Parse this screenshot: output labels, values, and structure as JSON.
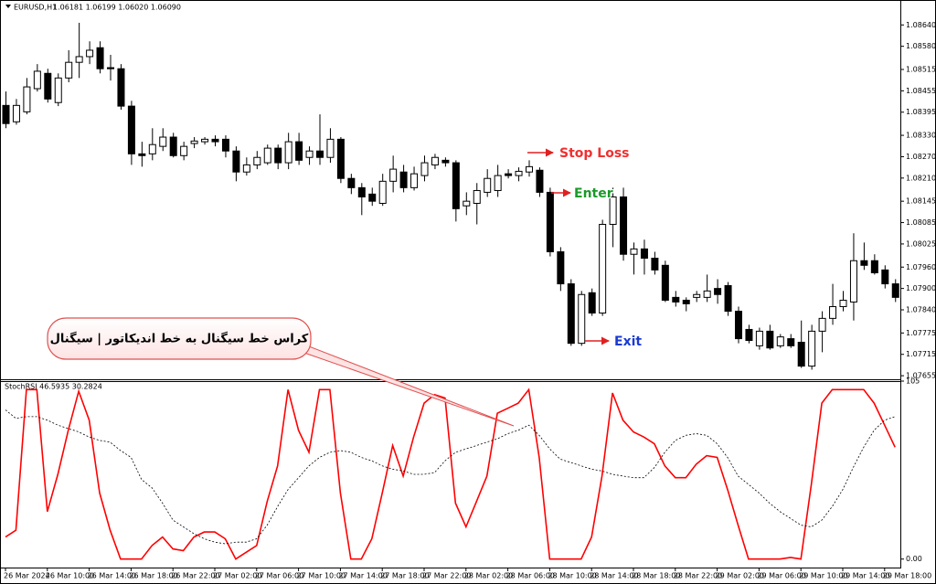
{
  "chart_data": [
    {
      "type": "candlestick",
      "title": "EURUSD,H1",
      "info": "1.06181 1.06199 1.06020 1.06090",
      "annotations": {
        "stop_loss": "Stop Loss",
        "enter": "Enter",
        "exit": "Exit",
        "callout": "کراس خط سیگنال به خط اندیکاتور | سیگنال"
      },
      "up_color": "#ffffff",
      "down_color": "#000000",
      "ylim": [
        1.07645,
        1.0871
      ],
      "yticks": [
        {
          "value": 1.0864,
          "label": "1.08640"
        },
        {
          "value": 1.0858,
          "label": "1.08580"
        },
        {
          "value": 1.08515,
          "label": "1.08515"
        },
        {
          "value": 1.08455,
          "label": "1.08455"
        },
        {
          "value": 1.08395,
          "label": "1.08395"
        },
        {
          "value": 1.0833,
          "label": "1.08330"
        },
        {
          "value": 1.0827,
          "label": "1.08270"
        },
        {
          "value": 1.0821,
          "label": "1.08210"
        },
        {
          "value": 1.08145,
          "label": "1.08145"
        },
        {
          "value": 1.08085,
          "label": "1.08085"
        },
        {
          "value": 1.08025,
          "label": "1.08025"
        },
        {
          "value": 1.0796,
          "label": "1.07960"
        },
        {
          "value": 1.079,
          "label": "1.07900"
        },
        {
          "value": 1.0784,
          "label": "1.07840"
        },
        {
          "value": 1.07775,
          "label": "1.07775"
        },
        {
          "value": 1.07715,
          "label": "1.07715"
        },
        {
          "value": 1.07655,
          "label": "1.07655"
        }
      ],
      "ohlc": [
        [
          1.08414,
          1.08453,
          1.0835,
          1.08363
        ],
        [
          1.08368,
          1.08432,
          1.0836,
          1.08414
        ],
        [
          1.08396,
          1.08491,
          1.08389,
          1.08466
        ],
        [
          1.08461,
          1.0853,
          1.08453,
          1.0851
        ],
        [
          1.08504,
          1.08517,
          1.08422,
          1.08432
        ],
        [
          1.08422,
          1.08504,
          1.08412,
          1.08491
        ],
        [
          1.08491,
          1.08569,
          1.08479,
          1.08535
        ],
        [
          1.08535,
          1.08646,
          1.08491,
          1.08551
        ],
        [
          1.08551,
          1.08594,
          1.0853,
          1.08569
        ],
        [
          1.08576,
          1.08594,
          1.08504,
          1.08517
        ],
        [
          1.0852,
          1.08556,
          1.08484,
          1.08517
        ],
        [
          1.08517,
          1.0853,
          1.08402,
          1.08412
        ],
        [
          1.08412,
          1.08427,
          1.08247,
          1.08278
        ],
        [
          1.08278,
          1.08312,
          1.08242,
          1.08273
        ],
        [
          1.08278,
          1.0835,
          1.0826,
          1.08304
        ],
        [
          1.08299,
          1.0835,
          1.08286,
          1.08325
        ],
        [
          1.08325,
          1.08337,
          1.08268,
          1.08273
        ],
        [
          1.08273,
          1.08312,
          1.0826,
          1.08299
        ],
        [
          1.08307,
          1.08325,
          1.08294,
          1.08314
        ],
        [
          1.08312,
          1.08325,
          1.08304,
          1.08319
        ],
        [
          1.08319,
          1.0833,
          1.08299,
          1.08312
        ],
        [
          1.08319,
          1.0833,
          1.08268,
          1.08286
        ],
        [
          1.08286,
          1.08299,
          1.08201,
          1.08227
        ],
        [
          1.08227,
          1.08268,
          1.08217,
          1.08247
        ],
        [
          1.08247,
          1.08286,
          1.08235,
          1.08268
        ],
        [
          1.08253,
          1.08304,
          1.08247,
          1.08294
        ],
        [
          1.08294,
          1.08304,
          1.08235,
          1.08253
        ],
        [
          1.08253,
          1.08337,
          1.08235,
          1.08312
        ],
        [
          1.08312,
          1.08337,
          1.08247,
          1.0826
        ],
        [
          1.08268,
          1.08299,
          1.08247,
          1.08286
        ],
        [
          1.08286,
          1.08389,
          1.08247,
          1.08268
        ],
        [
          1.08268,
          1.0835,
          1.08253,
          1.08319
        ],
        [
          1.08319,
          1.08325,
          1.08196,
          1.08209
        ],
        [
          1.08209,
          1.08222,
          1.08165,
          1.08183
        ],
        [
          1.08183,
          1.08196,
          1.08106,
          1.08157
        ],
        [
          1.08165,
          1.08183,
          1.08132,
          1.08145
        ],
        [
          1.08139,
          1.08222,
          1.08132,
          1.08201
        ],
        [
          1.08201,
          1.08273,
          1.0817,
          1.08235
        ],
        [
          1.08227,
          1.08247,
          1.0817,
          1.08183
        ],
        [
          1.08183,
          1.08242,
          1.08175,
          1.08222
        ],
        [
          1.08217,
          1.08273,
          1.08201,
          1.08253
        ],
        [
          1.08247,
          1.08278,
          1.08235,
          1.08268
        ],
        [
          1.0826,
          1.08268,
          1.08242,
          1.08253
        ],
        [
          1.08253,
          1.0826,
          1.08088,
          1.08124
        ],
        [
          1.08132,
          1.0817,
          1.08106,
          1.08145
        ],
        [
          1.08139,
          1.08196,
          1.0808,
          1.08175
        ],
        [
          1.0817,
          1.08235,
          1.08157,
          1.08209
        ],
        [
          1.08175,
          1.08247,
          1.08157,
          1.08217
        ],
        [
          1.08222,
          1.08235,
          1.08209,
          1.08217
        ],
        [
          1.08217,
          1.0824,
          1.08201,
          1.08229
        ],
        [
          1.08227,
          1.0826,
          1.08214,
          1.08242
        ],
        [
          1.08232,
          1.0824,
          1.08157,
          1.0817
        ],
        [
          1.0817,
          1.08183,
          1.0799,
          1.08003
        ],
        [
          1.08003,
          1.08016,
          1.07893,
          1.07913
        ],
        [
          1.07913,
          1.07926,
          1.07739,
          1.07746
        ],
        [
          1.07746,
          1.07893,
          1.07739,
          1.07883
        ],
        [
          1.07888,
          1.079,
          1.07823,
          1.07831
        ],
        [
          1.07831,
          1.08093,
          1.07823,
          1.0808
        ],
        [
          1.0808,
          1.08183,
          1.08016,
          1.08157
        ],
        [
          1.08157,
          1.08183,
          1.07978,
          1.07996
        ],
        [
          1.07996,
          1.08029,
          1.07939,
          1.08011
        ],
        [
          1.08011,
          1.08037,
          1.07939,
          1.07985
        ],
        [
          1.07985,
          1.08003,
          1.07939,
          1.07952
        ],
        [
          1.07965,
          1.07978,
          1.07862,
          1.07867
        ],
        [
          1.07875,
          1.07893,
          1.07849,
          1.07862
        ],
        [
          1.07867,
          1.07875,
          1.07836,
          1.07857
        ],
        [
          1.07875,
          1.07893,
          1.07862,
          1.07883
        ],
        [
          1.07875,
          1.07939,
          1.07862,
          1.07893
        ],
        [
          1.079,
          1.07926,
          1.07857,
          1.07883
        ],
        [
          1.07908,
          1.07918,
          1.07823,
          1.07836
        ],
        [
          1.07836,
          1.07849,
          1.07746,
          1.07759
        ],
        [
          1.07785,
          1.07798,
          1.07746,
          1.07754
        ],
        [
          1.07739,
          1.0779,
          1.07728,
          1.0778
        ],
        [
          1.0778,
          1.07798,
          1.07728,
          1.07733
        ],
        [
          1.07739,
          1.07772,
          1.07733,
          1.07764
        ],
        [
          1.07759,
          1.07772,
          1.07733,
          1.07739
        ],
        [
          1.07749,
          1.0781,
          1.07677,
          1.07682
        ],
        [
          1.07682,
          1.07798,
          1.07672,
          1.0778
        ],
        [
          1.0778,
          1.07836,
          1.07721,
          1.07816
        ],
        [
          1.07816,
          1.07913,
          1.07798,
          1.07849
        ],
        [
          1.07849,
          1.07893,
          1.07836,
          1.07867
        ],
        [
          1.07862,
          1.08055,
          1.0781,
          1.07978
        ],
        [
          1.07978,
          1.08029,
          1.07952,
          1.07965
        ],
        [
          1.07978,
          1.07996,
          1.07939,
          1.07944
        ],
        [
          1.07952,
          1.07965,
          1.079,
          1.07913
        ],
        [
          1.07913,
          1.07926,
          1.07862,
          1.07875
        ]
      ]
    },
    {
      "type": "line",
      "title": "StochRSI 46.5935 30.2824",
      "ylim": [
        -5,
        105
      ],
      "yticks": [
        105,
        {
          "value": 0,
          "label": "0.00"
        }
      ],
      "categories": [
        "26 Mar 2024",
        null,
        null,
        null,
        "26 Mar 10:00",
        null,
        null,
        null,
        "26 Mar 14:00",
        null,
        null,
        null,
        "26 Mar 18:00",
        null,
        null,
        null,
        "26 Mar 22:00",
        null,
        null,
        null,
        "27 Mar 02:00",
        null,
        null,
        null,
        "27 Mar 06:00",
        null,
        null,
        null,
        "27 Mar 10:00",
        null,
        null,
        null,
        "27 Mar 14:00",
        null,
        null,
        null,
        "27 Mar 18:00",
        null,
        null,
        null,
        "27 Mar 22:00",
        null,
        null,
        null,
        "28 Mar 02:00",
        null,
        null,
        null,
        "28 Mar 06:00",
        null,
        null,
        null,
        "28 Mar 10:00",
        null,
        null,
        null,
        "28 Mar 14:00",
        null,
        null,
        null,
        "28 Mar 18:00",
        null,
        null,
        null,
        "28 Mar 22:00",
        null,
        null,
        null,
        "29 Mar 02:00",
        null,
        null,
        null,
        "29 Mar 06:00",
        null,
        null,
        null,
        "29 Mar 10:00",
        null,
        null,
        null,
        "29 Mar 14:00",
        null,
        null,
        null,
        "29 Mar 18:00",
        null
      ],
      "series": [
        {
          "color": "#ff0000",
          "style": "solid",
          "values": [
            13,
            17,
            100,
            100,
            28,
            50,
            76,
            99,
            82,
            39,
            17,
            0,
            0,
            0,
            8,
            13,
            6,
            5,
            13,
            16,
            16,
            12,
            0,
            4,
            8,
            34,
            55,
            100,
            76,
            63,
            100,
            100,
            39,
            0,
            0,
            12,
            39,
            67,
            49,
            72,
            92,
            97,
            95,
            33,
            19,
            34,
            49,
            86,
            89,
            92,
            100,
            60,
            0,
            0,
            0,
            0,
            13,
            49,
            98,
            82,
            75,
            72,
            68,
            55,
            48,
            48,
            56,
            61,
            60,
            41,
            20,
            0,
            0,
            0,
            0,
            1,
            0,
            44,
            92,
            100,
            100,
            100,
            100,
            92,
            79,
            66
          ]
        },
        {
          "color": "#000000",
          "style": "dotted",
          "values": [
            88,
            83,
            84,
            84,
            82,
            79,
            77,
            75,
            72,
            70,
            69,
            64,
            60,
            47,
            42,
            33,
            23,
            19,
            15,
            12,
            10,
            9,
            10,
            10,
            12,
            20,
            31,
            41,
            48,
            55,
            60,
            63,
            64,
            63,
            60,
            58,
            55,
            53,
            52,
            50,
            50,
            51,
            58,
            63,
            65,
            67,
            69,
            71,
            74,
            76,
            79,
            73,
            65,
            59,
            57,
            55,
            53,
            52,
            50,
            49,
            48,
            48,
            54,
            63,
            70,
            73,
            74,
            73,
            68,
            60,
            49,
            44,
            39,
            33,
            28,
            24,
            20,
            19,
            23,
            31,
            41,
            54,
            66,
            76,
            82,
            84
          ]
        }
      ]
    }
  ]
}
